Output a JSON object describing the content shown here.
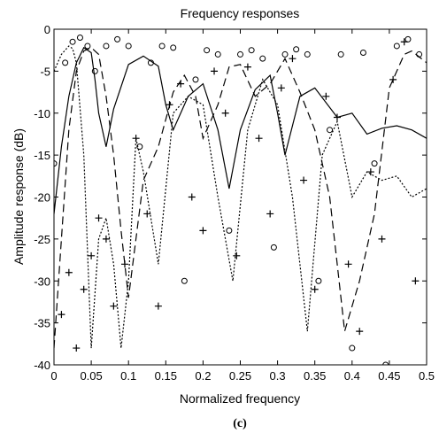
{
  "chart_data": {
    "type": "line",
    "title": "Frequency responses",
    "xlabel": "Normalized frequency",
    "ylabel": "Amplitude response (dB)",
    "caption": "(c)",
    "xlim": [
      0,
      0.5
    ],
    "ylim": [
      -40,
      0
    ],
    "x_ticks": [
      0,
      0.05,
      0.1,
      0.15,
      0.2,
      0.25,
      0.3,
      0.35,
      0.4,
      0.45,
      0.5
    ],
    "x_tick_labels": [
      "0",
      "0.05",
      "0.1",
      "0.15",
      "0.2",
      "0.25",
      "0.3",
      "0.35",
      "0.4",
      "0.45",
      "0.5"
    ],
    "y_ticks": [
      0,
      -5,
      -10,
      -15,
      -20,
      -25,
      -30,
      -35,
      -40
    ],
    "y_tick_labels": [
      "0",
      "-5",
      "-10",
      "-15",
      "-20",
      "-25",
      "-30",
      "-35",
      "-40"
    ],
    "grid": false,
    "legend": "none",
    "series": [
      {
        "style": "solid",
        "x": [
          0,
          0.01,
          0.02,
          0.03,
          0.04,
          0.05,
          0.055,
          0.06,
          0.07,
          0.08,
          0.1,
          0.12,
          0.14,
          0.15,
          0.16,
          0.18,
          0.2,
          0.22,
          0.235,
          0.25,
          0.27,
          0.29,
          0.3,
          0.31,
          0.33,
          0.35,
          0.38,
          0.4,
          0.42,
          0.44,
          0.46,
          0.48,
          0.5
        ],
        "y": [
          -22,
          -14,
          -8,
          -4,
          -2.2,
          -2.8,
          -6,
          -10,
          -14,
          -9.5,
          -4.2,
          -3.2,
          -4.4,
          -9,
          -12,
          -8,
          -6.5,
          -12,
          -19,
          -12,
          -7.2,
          -5.5,
          -10,
          -15,
          -8,
          -7,
          -10.5,
          -10,
          -12.5,
          -11.8,
          -11.5,
          -12,
          -13
        ]
      },
      {
        "style": "dashed",
        "x": [
          0,
          0.01,
          0.02,
          0.03,
          0.04,
          0.05,
          0.06,
          0.07,
          0.08,
          0.09,
          0.1,
          0.12,
          0.14,
          0.16,
          0.175,
          0.19,
          0.2,
          0.22,
          0.235,
          0.25,
          0.27,
          0.29,
          0.31,
          0.33,
          0.35,
          0.37,
          0.38,
          0.39,
          0.41,
          0.43,
          0.45,
          0.47,
          0.48,
          0.5
        ],
        "y": [
          -38,
          -25,
          -12,
          -5,
          -2.6,
          -2.2,
          -3,
          -8,
          -15,
          -24,
          -32,
          -18,
          -14,
          -7.5,
          -5.5,
          -8,
          -13,
          -9,
          -4.5,
          -4.2,
          -8,
          -6.5,
          -3.5,
          -7.5,
          -12,
          -20,
          -28,
          -36,
          -30,
          -22,
          -7,
          -3,
          -2.6,
          -4
        ]
      },
      {
        "style": "dotted",
        "x": [
          0,
          0.01,
          0.02,
          0.025,
          0.03,
          0.04,
          0.05,
          0.06,
          0.07,
          0.08,
          0.09,
          0.1,
          0.11,
          0.12,
          0.14,
          0.16,
          0.18,
          0.2,
          0.22,
          0.24,
          0.26,
          0.28,
          0.3,
          0.32,
          0.34,
          0.36,
          0.38,
          0.4,
          0.42,
          0.44,
          0.46,
          0.48,
          0.5
        ],
        "y": [
          -5,
          -3,
          -2,
          -2.3,
          -4,
          -15,
          -38,
          -25,
          -22.5,
          -28,
          -38,
          -30,
          -13,
          -17,
          -28,
          -10,
          -8,
          -9,
          -20,
          -30,
          -12,
          -6,
          -9,
          -20,
          -36,
          -15,
          -11,
          -20,
          -17,
          -18,
          -17.5,
          -20,
          -19
        ]
      },
      {
        "style": "circle",
        "x": [
          0.0,
          0.015,
          0.025,
          0.035,
          0.045,
          0.055,
          0.07,
          0.085,
          0.1,
          0.115,
          0.13,
          0.145,
          0.16,
          0.175,
          0.19,
          0.205,
          0.22,
          0.235,
          0.25,
          0.265,
          0.28,
          0.295,
          0.31,
          0.325,
          0.34,
          0.355,
          0.37,
          0.385,
          0.4,
          0.415,
          0.43,
          0.445,
          0.46,
          0.475,
          0.49
        ],
        "y": [
          -16,
          -4,
          -1.5,
          -1,
          -2,
          -5,
          -2,
          -1.2,
          -2,
          -14,
          -4,
          -2,
          -2.2,
          -30,
          -6,
          -2.5,
          -3,
          -24,
          -3,
          -2.5,
          -3.5,
          -26,
          -3,
          -2.4,
          -3,
          -30,
          -12,
          -3,
          -38,
          -2.8,
          -16,
          -40,
          -2,
          -1.2,
          -3
        ]
      },
      {
        "style": "plus",
        "x": [
          0.01,
          0.02,
          0.03,
          0.04,
          0.05,
          0.06,
          0.07,
          0.08,
          0.095,
          0.11,
          0.125,
          0.14,
          0.155,
          0.17,
          0.185,
          0.2,
          0.215,
          0.23,
          0.245,
          0.26,
          0.275,
          0.29,
          0.305,
          0.32,
          0.335,
          0.35,
          0.365,
          0.38,
          0.395,
          0.41,
          0.425,
          0.44,
          0.455,
          0.47,
          0.485
        ],
        "y": [
          -34,
          -29,
          -38,
          -31,
          -27,
          -22.5,
          -25,
          -33,
          -28,
          -13,
          -22,
          -33,
          -9,
          -6.5,
          -20,
          -24,
          -5,
          -10,
          -27,
          -4.5,
          -13,
          -22,
          -7,
          -3.5,
          -18,
          -31,
          -8,
          -10.5,
          -28,
          -36,
          -17,
          -25,
          -6,
          -1.5,
          -30
        ]
      }
    ]
  }
}
